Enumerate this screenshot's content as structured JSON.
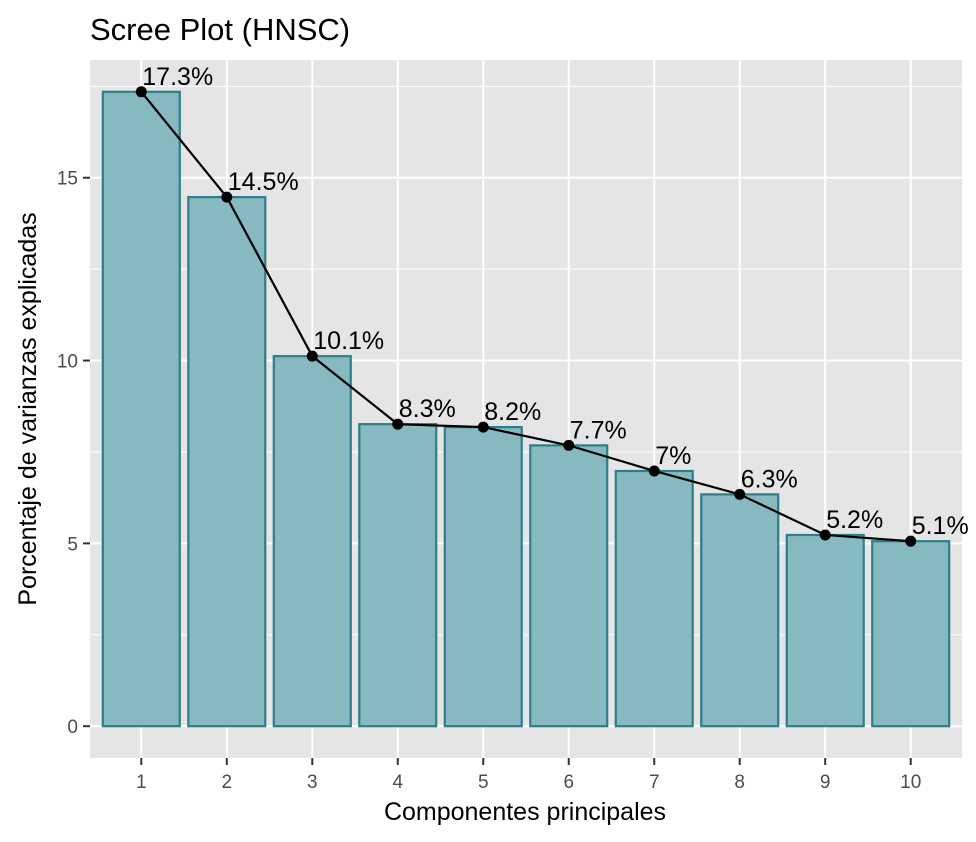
{
  "chart_data": {
    "type": "bar",
    "title": "Scree Plot (HNSC)",
    "xlabel": "Componentes principales",
    "ylabel": "Porcentaje de varianzas explicadas",
    "categories": [
      "1",
      "2",
      "3",
      "4",
      "5",
      "6",
      "7",
      "8",
      "9",
      "10"
    ],
    "values": [
      17.35,
      14.47,
      10.12,
      8.26,
      8.18,
      7.68,
      6.98,
      6.34,
      5.23,
      5.06
    ],
    "data_labels": [
      "17.3%",
      "14.5%",
      "10.1%",
      "8.3%",
      "8.2%",
      "7.7%",
      "7%",
      "6.3%",
      "5.2%",
      "5.1%"
    ],
    "yticks": [
      0,
      5,
      10,
      15
    ],
    "ylim": [
      -0.87,
      18.22
    ],
    "grid": true,
    "overlay": "line-with-points",
    "colors": {
      "bar_fill": "#86b9c0",
      "bar_stroke": "#2e7d8a",
      "line": "#000000",
      "panel_background": "#e5e5e5",
      "grid": "#ffffff"
    }
  }
}
